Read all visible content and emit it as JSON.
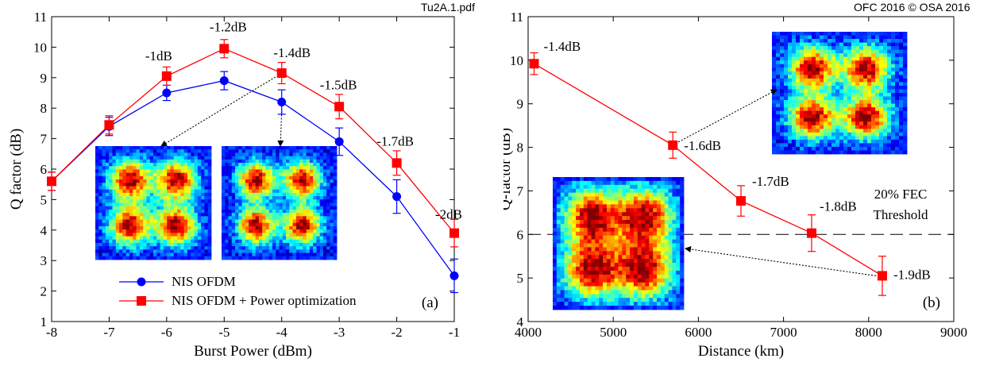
{
  "header": {
    "left_tag": "Tu2A.1.pdf",
    "right_tag": "OFC 2016 © OSA 2016"
  },
  "colors": {
    "nis_ofdm": "#0000ff",
    "power_opt": "#ff0000",
    "threshold": "#000000"
  },
  "chart_data": [
    {
      "type": "line",
      "panel_label": "(a)",
      "xlabel": "Burst Power (dBm)",
      "ylabel": "Q factor (dB)",
      "xlim": [
        -8,
        -1
      ],
      "ylim": [
        1,
        11
      ],
      "xticks": [
        -8,
        -7,
        -6,
        -5,
        -4,
        -3,
        -2,
        -1
      ],
      "yticks": [
        1,
        2,
        3,
        4,
        5,
        6,
        7,
        8,
        9,
        10,
        11
      ],
      "grid": false,
      "legend_placement": "bottom-center",
      "series": [
        {
          "name": "NIS OFDM",
          "marker": "circle",
          "color": "#0000ff",
          "x": [
            -8,
            -7,
            -6,
            -5,
            -4,
            -3,
            -2,
            -1
          ],
          "y": [
            5.6,
            7.4,
            8.5,
            8.9,
            8.2,
            6.9,
            5.1,
            2.5
          ],
          "err": [
            0.3,
            0.3,
            0.25,
            0.3,
            0.4,
            0.45,
            0.55,
            0.55
          ]
        },
        {
          "name": "NIS OFDM + Power optimization",
          "marker": "square",
          "color": "#ff0000",
          "x": [
            -8,
            -7,
            -6,
            -5,
            -4,
            -3,
            -2,
            -1
          ],
          "y": [
            5.6,
            7.45,
            9.05,
            9.95,
            9.15,
            8.05,
            6.2,
            3.9
          ],
          "err": [
            0.3,
            0.3,
            0.3,
            0.3,
            0.35,
            0.4,
            0.4,
            0.45
          ]
        }
      ],
      "point_labels": [
        {
          "x": -6,
          "y": 9.05,
          "text": "-1dB"
        },
        {
          "x": -5,
          "y": 9.95,
          "text": "-1.2dB"
        },
        {
          "x": -4,
          "y": 9.15,
          "text": "-1.4dB"
        },
        {
          "x": -3,
          "y": 8.05,
          "text": "-1.5dB"
        },
        {
          "x": -2,
          "y": 6.2,
          "text": "-1.7dB"
        },
        {
          "x": -1,
          "y": 3.9,
          "text": "-2dB"
        }
      ],
      "insets": [
        {
          "name": "constellation-a1",
          "arrow_from": {
            "x": -4,
            "y": 9.15
          }
        },
        {
          "name": "constellation-a2",
          "arrow_from": {
            "x": -4,
            "y": 8.2
          }
        }
      ]
    },
    {
      "type": "line",
      "panel_label": "(b)",
      "xlabel": "Distance (km)",
      "ylabel": "Q-factor (dB)",
      "xlim": [
        4000,
        9000
      ],
      "ylim": [
        4,
        11
      ],
      "xticks": [
        4000,
        5000,
        6000,
        7000,
        8000,
        9000
      ],
      "yticks": [
        4,
        5,
        6,
        7,
        8,
        9,
        10,
        11
      ],
      "grid": false,
      "series": [
        {
          "marker": "square",
          "color": "#ff0000",
          "x": [
            4070,
            5700,
            6500,
            7330,
            8160
          ],
          "y": [
            9.92,
            8.05,
            6.77,
            6.03,
            5.05
          ],
          "err": [
            0.25,
            0.3,
            0.35,
            0.42,
            0.45
          ]
        }
      ],
      "point_labels": [
        {
          "x": 4070,
          "y": 9.92,
          "text": "-1.4dB"
        },
        {
          "x": 5700,
          "y": 8.05,
          "text": "-1.6dB"
        },
        {
          "x": 6500,
          "y": 6.77,
          "text": "-1.7dB"
        },
        {
          "x": 7330,
          "y": 6.03,
          "text": "-1.8dB"
        },
        {
          "x": 8160,
          "y": 5.05,
          "text": "-1.9dB"
        }
      ],
      "threshold": {
        "y": 6.0,
        "label_line1": "20% FEC",
        "label_line2": "Threshold"
      },
      "insets": [
        {
          "name": "constellation-b1",
          "arrow_from": {
            "x": 5700,
            "y": 8.05
          }
        },
        {
          "name": "constellation-b2",
          "arrow_from": {
            "x": 8160,
            "y": 5.05
          }
        }
      ]
    }
  ]
}
